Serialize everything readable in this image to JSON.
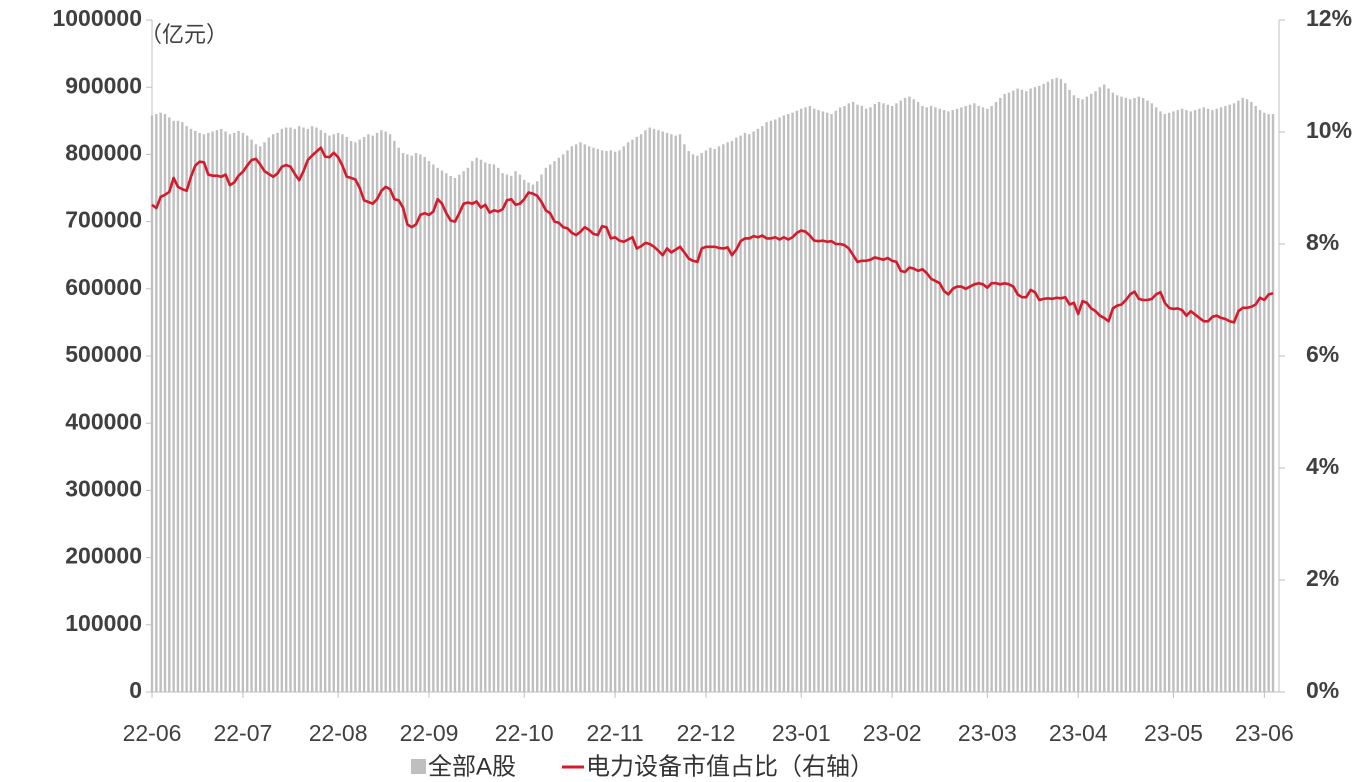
{
  "chart_data": {
    "type": "bar_line",
    "ylabel": "（亿元）",
    "categories": [
      "22-06",
      null,
      null,
      null,
      null,
      null,
      null,
      null,
      null,
      null,
      null,
      null,
      null,
      null,
      null,
      null,
      null,
      null,
      null,
      null,
      null,
      "22-07",
      null,
      null,
      null,
      null,
      null,
      null,
      null,
      null,
      null,
      null,
      null,
      null,
      null,
      null,
      null,
      null,
      null,
      null,
      null,
      null,
      null,
      "22-08",
      null,
      null,
      null,
      null,
      null,
      null,
      null,
      null,
      null,
      null,
      null,
      null,
      null,
      null,
      null,
      null,
      null,
      null,
      null,
      null,
      "22-09",
      null,
      null,
      null,
      null,
      null,
      null,
      null,
      null,
      null,
      null,
      null,
      null,
      null,
      null,
      null,
      null,
      null,
      null,
      null,
      null,
      null,
      "22-10",
      null,
      null,
      null,
      null,
      null,
      null,
      null,
      null,
      null,
      null,
      null,
      null,
      null,
      null,
      null,
      null,
      null,
      null,
      null,
      null,
      "22-11",
      null,
      null,
      null,
      null,
      null,
      null,
      null,
      null,
      null,
      null,
      null,
      null,
      null,
      null,
      null,
      null,
      null,
      null,
      null,
      null,
      "22-12",
      null,
      null,
      null,
      null,
      null,
      null,
      null,
      null,
      null,
      null,
      null,
      null,
      null,
      null,
      null,
      null,
      null,
      null,
      null,
      null,
      null,
      "23-01",
      null,
      null,
      null,
      null,
      null,
      null,
      null,
      null,
      null,
      null,
      null,
      null,
      null,
      null,
      null,
      null,
      null,
      null,
      null,
      null,
      "23-02",
      null,
      null,
      null,
      null,
      null,
      null,
      null,
      null,
      null,
      null,
      null,
      null,
      null,
      null,
      null,
      null,
      null,
      null,
      null,
      null,
      null,
      "23-03",
      null,
      null,
      null,
      null,
      null,
      null,
      null,
      null,
      null,
      null,
      null,
      null,
      null,
      null,
      null,
      null,
      null,
      null,
      null,
      null,
      "23-04",
      null,
      null,
      null,
      null,
      null,
      null,
      null,
      null,
      null,
      null,
      null,
      null,
      null,
      null,
      null,
      null,
      null,
      null,
      null,
      null,
      null,
      "23-05",
      null,
      null,
      null,
      null,
      null,
      null,
      null,
      null,
      null,
      null,
      null,
      null,
      null,
      null,
      null,
      null,
      null,
      null,
      null,
      null,
      "23-06",
      null,
      null
    ],
    "series": [
      {
        "name": "全部A股",
        "type": "bar",
        "color": "#bfbfbf",
        "values": [
          858000,
          860000,
          862000,
          860000,
          855000,
          850000,
          850000,
          848000,
          842000,
          838000,
          835000,
          832000,
          830000,
          832000,
          834000,
          836000,
          838000,
          834000,
          830000,
          832000,
          835000,
          832000,
          828000,
          822000,
          815000,
          812000,
          818000,
          825000,
          830000,
          832000,
          838000,
          840000,
          840000,
          838000,
          842000,
          840000,
          838000,
          842000,
          840000,
          836000,
          832000,
          828000,
          830000,
          832000,
          830000,
          826000,
          820000,
          818000,
          822000,
          826000,
          830000,
          828000,
          832000,
          836000,
          834000,
          830000,
          820000,
          810000,
          802000,
          800000,
          798000,
          802000,
          800000,
          796000,
          790000,
          785000,
          780000,
          776000,
          772000,
          768000,
          765000,
          770000,
          775000,
          780000,
          790000,
          795000,
          792000,
          788000,
          786000,
          785000,
          780000,
          772000,
          770000,
          768000,
          775000,
          770000,
          762000,
          758000,
          755000,
          760000,
          770000,
          780000,
          785000,
          790000,
          795000,
          800000,
          806000,
          812000,
          815000,
          818000,
          815000,
          812000,
          810000,
          808000,
          806000,
          805000,
          806000,
          804000,
          806000,
          812000,
          818000,
          822000,
          826000,
          830000,
          836000,
          840000,
          838000,
          836000,
          834000,
          832000,
          830000,
          828000,
          830000,
          815000,
          805000,
          800000,
          798000,
          802000,
          806000,
          810000,
          808000,
          812000,
          815000,
          818000,
          820000,
          825000,
          828000,
          832000,
          830000,
          834000,
          838000,
          842000,
          848000,
          850000,
          852000,
          855000,
          858000,
          860000,
          862000,
          865000,
          868000,
          870000,
          872000,
          868000,
          866000,
          864000,
          862000,
          860000,
          865000,
          870000,
          872000,
          876000,
          878000,
          874000,
          872000,
          868000,
          870000,
          875000,
          878000,
          876000,
          874000,
          872000,
          876000,
          880000,
          884000,
          886000,
          882000,
          878000,
          872000,
          870000,
          872000,
          870000,
          868000,
          866000,
          864000,
          866000,
          868000,
          870000,
          872000,
          874000,
          876000,
          872000,
          870000,
          868000,
          872000,
          878000,
          884000,
          890000,
          892000,
          895000,
          898000,
          896000,
          894000,
          898000,
          900000,
          902000,
          905000,
          908000,
          912000,
          914000,
          912000,
          906000,
          896000,
          888000,
          884000,
          882000,
          886000,
          890000,
          894000,
          900000,
          904000,
          898000,
          892000,
          888000,
          886000,
          884000,
          882000,
          884000,
          886000,
          884000,
          880000,
          876000,
          870000,
          864000,
          860000,
          862000,
          864000,
          866000,
          868000,
          866000,
          864000,
          866000,
          868000,
          870000,
          868000,
          866000,
          868000,
          870000,
          872000,
          874000,
          876000,
          880000,
          884000,
          882000,
          878000,
          872000,
          866000,
          862000,
          860000,
          860000
        ]
      },
      {
        "name": "电力设备市值占比（右轴）",
        "type": "line",
        "axis": "y2",
        "color": "#d41a2b",
        "values": [
          8.7,
          8.64,
          8.84,
          8.88,
          8.93,
          9.18,
          9.02,
          8.98,
          8.95,
          9.2,
          9.4,
          9.47,
          9.46,
          9.24,
          9.22,
          9.22,
          9.2,
          9.24,
          9.05,
          9.1,
          9.22,
          9.29,
          9.4,
          9.5,
          9.52,
          9.42,
          9.3,
          9.25,
          9.2,
          9.26,
          9.38,
          9.41,
          9.38,
          9.25,
          9.14,
          9.3,
          9.5,
          9.58,
          9.65,
          9.72,
          9.56,
          9.55,
          9.63,
          9.55,
          9.4,
          9.2,
          9.18,
          9.15,
          9.0,
          8.78,
          8.75,
          8.72,
          8.8,
          8.95,
          9.02,
          8.98,
          8.8,
          8.78,
          8.65,
          8.35,
          8.3,
          8.35,
          8.52,
          8.55,
          8.52,
          8.58,
          8.8,
          8.72,
          8.55,
          8.42,
          8.4,
          8.55,
          8.72,
          8.74,
          8.72,
          8.76,
          8.65,
          8.7,
          8.56,
          8.6,
          8.58,
          8.62,
          8.78,
          8.8,
          8.7,
          8.72,
          8.8,
          8.92,
          8.9,
          8.86,
          8.75,
          8.6,
          8.55,
          8.4,
          8.38,
          8.3,
          8.28,
          8.2,
          8.16,
          8.22,
          8.3,
          8.25,
          8.18,
          8.16,
          8.32,
          8.3,
          8.1,
          8.12,
          8.06,
          8.04,
          8.08,
          8.12,
          7.92,
          7.96,
          8.02,
          8.0,
          7.95,
          7.88,
          7.8,
          7.92,
          7.85,
          7.9,
          7.95,
          7.85,
          7.74,
          7.7,
          7.68,
          7.92,
          7.95,
          7.95,
          7.95,
          7.93,
          7.92,
          7.94,
          7.8,
          7.9,
          8.05,
          8.1,
          8.1,
          8.14,
          8.12,
          8.15,
          8.1,
          8.1,
          8.12,
          8.08,
          8.12,
          8.08,
          8.12,
          8.2,
          8.24,
          8.22,
          8.15,
          8.06,
          8.05,
          8.06,
          8.04,
          8.05,
          8.0,
          8.0,
          7.98,
          7.92,
          7.8,
          7.68,
          7.7,
          7.7,
          7.72,
          7.76,
          7.74,
          7.72,
          7.75,
          7.7,
          7.68,
          7.52,
          7.5,
          7.58,
          7.56,
          7.52,
          7.55,
          7.48,
          7.38,
          7.34,
          7.3,
          7.16,
          7.1,
          7.2,
          7.24,
          7.24,
          7.2,
          7.24,
          7.28,
          7.3,
          7.28,
          7.22,
          7.3,
          7.3,
          7.28,
          7.3,
          7.28,
          7.24,
          7.1,
          7.05,
          7.05,
          7.18,
          7.14,
          7.0,
          7.02,
          7.03,
          7.02,
          7.04,
          7.03,
          7.05,
          6.92,
          6.95,
          6.75,
          6.98,
          6.95,
          6.85,
          6.8,
          6.72,
          6.68,
          6.62,
          6.85,
          6.9,
          6.92,
          7.0,
          7.1,
          7.15,
          7.02,
          7.0,
          7.0,
          7.02,
          7.1,
          7.14,
          6.95,
          6.86,
          6.84,
          6.85,
          6.82,
          6.72,
          6.8,
          6.74,
          6.68,
          6.62,
          6.62,
          6.7,
          6.72,
          6.68,
          6.66,
          6.62,
          6.6,
          6.8,
          6.86,
          6.86,
          6.88,
          6.92,
          7.04,
          7.0,
          7.1,
          7.12
        ]
      }
    ],
    "ylim": [
      0,
      1000000
    ],
    "yticks": [
      0,
      100000,
      200000,
      300000,
      400000,
      500000,
      600000,
      700000,
      800000,
      900000,
      1000000
    ],
    "y2lim": [
      0,
      12
    ],
    "y2ticks": [
      {
        "value": 0,
        "label": "0%"
      },
      {
        "value": 2,
        "label": "2%"
      },
      {
        "value": 4,
        "label": "4%"
      },
      {
        "value": 6,
        "label": "6%"
      },
      {
        "value": 8,
        "label": "8%"
      },
      {
        "value": 10,
        "label": "10%"
      },
      {
        "value": 12,
        "label": "12%"
      }
    ],
    "legend": "bottom"
  }
}
